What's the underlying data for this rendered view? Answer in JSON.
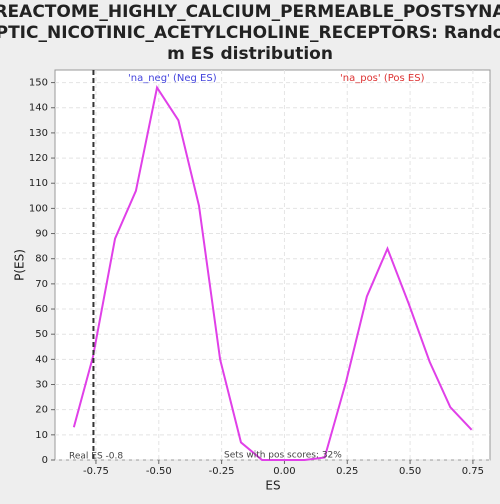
{
  "chart_data": {
    "type": "line",
    "title": "REACTOME_HIGHLY_CALCIUM_PERMEABLE_POSTSYNAPTIC_NICOTINIC_ACETYLCHOLINE_RECEPTORS: Random ES distribution",
    "x_label": "ES",
    "y_label": "P(ES)",
    "x": [
      -0.838,
      -0.762,
      -0.674,
      -0.591,
      -0.507,
      -0.422,
      -0.34,
      -0.256,
      -0.173,
      -0.089,
      -0.005,
      0.08,
      0.16,
      0.245,
      0.328,
      0.41,
      0.495,
      0.578,
      0.66,
      0.745
    ],
    "series": [
      {
        "name": "P(ES)",
        "color": "#e040e8",
        "values": [
          13,
          41,
          88,
          107,
          148,
          135,
          101,
          40,
          7,
          0,
          0,
          0,
          1,
          31,
          65,
          84,
          62,
          39,
          21,
          12
        ]
      }
    ],
    "real_es": -0.76,
    "annotations": {
      "neg": "'na_neg' (Neg ES)",
      "pos": "'na_pos' (Pos ES)",
      "real": "Real ES -0.8",
      "sets": "Sets with pos scores: 32%"
    },
    "xlim": [
      -0.913,
      0.818
    ],
    "ylim": [
      0,
      155
    ],
    "xticks": [
      -0.75,
      {
        "value": -0.5,
        "label": "-0.50"
      },
      -0.25,
      {
        "value": 0,
        "label": "0.00"
      },
      0.25,
      {
        "value": 0.5,
        "label": "0.50"
      },
      0.75
    ],
    "yticks": [
      0,
      10,
      20,
      30,
      40,
      50,
      60,
      70,
      80,
      90,
      100,
      110,
      120,
      130,
      140,
      150
    ],
    "grid": true
  }
}
